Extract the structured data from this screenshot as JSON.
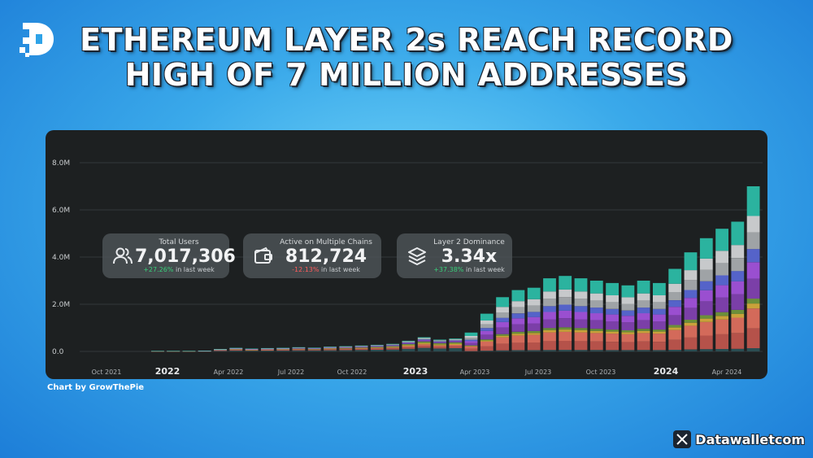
{
  "header": {
    "title_line1": "ETHEREUM LAYER 2s REACH RECORD",
    "title_line2": "HIGH OF 7 MILLION ADDRESSES"
  },
  "stats": [
    {
      "label": "Total Users",
      "value": "7,017,306",
      "change": "+27.26%",
      "change_suffix": " in last week",
      "direction": "up",
      "icon": "users-icon"
    },
    {
      "label": "Active on Multiple Chains",
      "value": "812,724",
      "change": "-12.13%",
      "change_suffix": " in last week",
      "direction": "down",
      "icon": "wallet-icon"
    },
    {
      "label": "Layer 2 Dominance",
      "value": "3.34x",
      "change": "+37.38%",
      "change_suffix": " in last week",
      "direction": "up",
      "icon": "layers-icon"
    }
  ],
  "credit": "Chart by GrowThePie",
  "brand": {
    "name": "Datawalletcom",
    "icon": "x-logo-icon"
  },
  "colors": {
    "background": "#2fa3e8",
    "panel": "#1d2021",
    "series": [
      "#2a4d52",
      "#b5524a",
      "#d36a5a",
      "#c9a23a",
      "#6b8f3a",
      "#7b3fa8",
      "#9a4fd0",
      "#5563c9",
      "#9fa3a6",
      "#c7c9cb",
      "#2bb39f"
    ]
  },
  "chart_data": {
    "type": "bar",
    "stacked": true,
    "x": [
      "Oct 2021",
      "2022",
      "Apr 2022",
      "Jul 2022",
      "Oct 2022",
      "2023",
      "Apr 2023",
      "Jul 2023",
      "Oct 2023",
      "2024",
      "Apr 2024"
    ],
    "x_tick_labels": [
      "Oct 2021",
      "2022",
      "Apr 2022",
      "Jul 2022",
      "Oct 2022",
      "2023",
      "Apr 2023",
      "Jul 2023",
      "Oct 2023",
      "2024",
      "Apr 2024"
    ],
    "y_tick_labels": [
      "0.0",
      "2.0M",
      "4.0M",
      "6.0M",
      "8.0M"
    ],
    "ylim": [
      0,
      8000000
    ],
    "total_weekly_users_estimate": [
      0.02,
      0.02,
      0.02,
      0.03,
      0.1,
      0.15,
      0.12,
      0.14,
      0.15,
      0.18,
      0.16,
      0.2,
      0.22,
      0.25,
      0.28,
      0.32,
      0.45,
      0.6,
      0.5,
      0.55,
      0.8,
      1.6,
      2.3,
      2.6,
      2.7,
      3.1,
      3.2,
      3.1,
      3.0,
      2.9,
      2.8,
      3.0,
      2.9,
      3.5,
      4.2,
      4.8,
      5.2,
      5.5,
      7.0
    ],
    "grid": true,
    "legend": "none"
  }
}
